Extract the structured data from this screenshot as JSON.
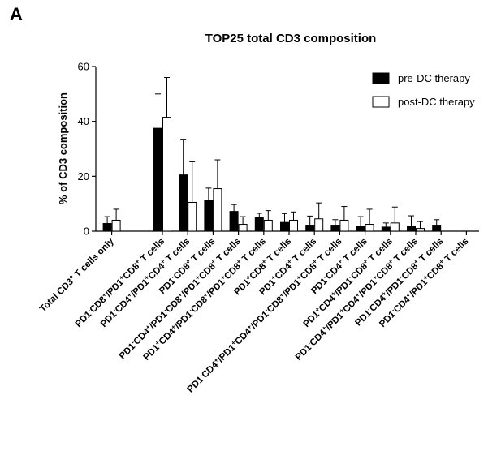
{
  "panel_label": "A",
  "chart_data": {
    "type": "bar",
    "title": "TOP25 total CD3 composition",
    "xlabel": "",
    "ylabel": "% of CD3 composition",
    "ylim": [
      0,
      60
    ],
    "yticks": [
      0,
      20,
      40,
      60
    ],
    "grid": false,
    "legend_position": "top-right",
    "categories": [
      "Total CD3<sup>+</sup> T cells only",
      "",
      "PD1<sup>-</sup>CD8<sup>+</sup>/PD1<sup>+</sup>CD8<sup>+</sup> T cells",
      "PD1<sup>-</sup>CD4<sup>+</sup>/PD1<sup>+</sup>CD4<sup>+</sup> T cells",
      "PD1<sup>-</sup>CD8<sup>+</sup> T cells",
      "PD1<sup>-</sup>CD4<sup>+</sup>/PD1<sup>-</sup>CD8<sup>+</sup>/PD1<sup>+</sup>CD8<sup>+</sup> T cells",
      "PD1<sup>+</sup>CD4<sup>+</sup>/PD1<sup>-</sup>CD8<sup>+</sup>/PD1<sup>+</sup>CD8<sup>+</sup> T cells",
      "PD1<sup>+</sup>CD8<sup>+</sup> T cells",
      "PD1<sup>+</sup>CD4<sup>+</sup> T cells",
      "PD1<sup>-</sup>CD4<sup>+</sup>/PD1<sup>+</sup>CD4<sup>+</sup>/PD1<sup>-</sup>CD8<sup>+</sup>/PD1<sup>+</sup>CD8<sup>+</sup> T cells",
      "PD1<sup>-</sup>CD4<sup>+</sup> T cells",
      "PD1<sup>+</sup>CD4<sup>+</sup>/PD1<sup>-</sup>CD8<sup>+</sup> T cells",
      "PD1<sup>-</sup>CD4<sup>+</sup>/PD1<sup>+</sup>CD4<sup>+</sup>/PD1<sup>+</sup>CD8<sup>+</sup> T cells",
      "PD1<sup>-</sup>CD4<sup>+</sup>/PD1<sup>-</sup>CD8<sup>+</sup> T cells",
      "PD1<sup>-</sup>CD4<sup>+</sup>/PD1<sup>+</sup>CD8<sup>+</sup> T cells"
    ],
    "series": [
      {
        "name": "pre-DC therapy",
        "color": "#000000",
        "values": [
          2.8,
          null,
          37.5,
          20.5,
          11.2,
          7.2,
          5.0,
          3.2,
          2.2,
          2.2,
          1.8,
          1.5,
          1.8,
          2.2,
          0
        ],
        "errors": [
          2.5,
          null,
          12.5,
          13.0,
          4.5,
          2.5,
          1.5,
          3.2,
          3.3,
          2.0,
          3.5,
          1.5,
          3.8,
          2.0,
          0
        ]
      },
      {
        "name": "post-DC therapy",
        "color": "#ffffff",
        "values": [
          4.0,
          null,
          41.5,
          10.5,
          15.5,
          2.5,
          4.0,
          4.0,
          4.5,
          4.0,
          2.5,
          3.0,
          1.0,
          0,
          0
        ],
        "errors": [
          4.0,
          null,
          14.5,
          14.8,
          10.5,
          2.8,
          3.5,
          3.0,
          5.8,
          5.0,
          5.5,
          5.8,
          2.5,
          0,
          0
        ]
      }
    ]
  }
}
